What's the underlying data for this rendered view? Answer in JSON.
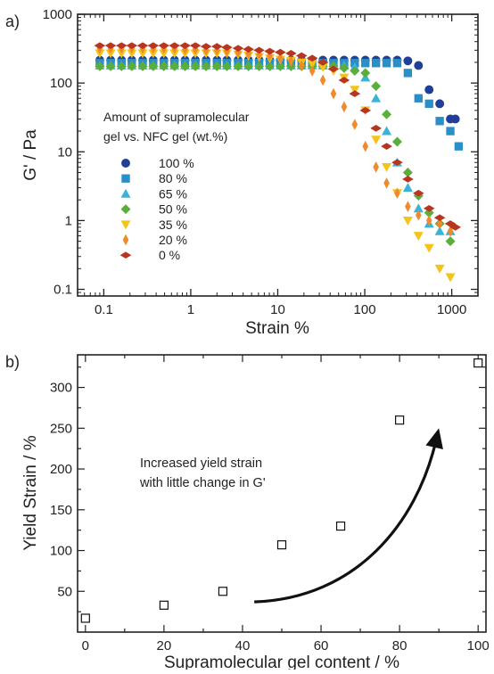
{
  "chart_data": [
    {
      "panel_label": "a)",
      "type": "scatter",
      "xlabel": "Strain %",
      "ylabel": "G' / Pa",
      "xscale": "log",
      "yscale": "log",
      "xlim": [
        0.05,
        2000
      ],
      "ylim": [
        0.08,
        1000
      ],
      "x_ticks": [
        0.1,
        1,
        10,
        100,
        1000
      ],
      "x_tick_labels": [
        "0.1",
        "1",
        "10",
        "100",
        "1000"
      ],
      "y_ticks": [
        0.1,
        1,
        10,
        100,
        1000
      ],
      "y_tick_labels": [
        "0.1",
        "1",
        "10",
        "100",
        "1000"
      ],
      "grid": false,
      "legend_title": [
        "Amount of supramolecular",
        "gel vs. NFC gel (wt.%)"
      ],
      "legend_position": "center-left",
      "series": [
        {
          "name": "100 %",
          "marker": "circle",
          "color": "#1f3f99",
          "x": [
            0.09,
            0.12,
            0.16,
            0.21,
            0.28,
            0.37,
            0.49,
            0.65,
            0.86,
            1.13,
            1.5,
            2,
            2.6,
            3.5,
            4.6,
            6.1,
            8.1,
            10.7,
            14.2,
            18.8,
            24.9,
            33,
            43.7,
            57.9,
            76.7,
            101.6,
            134.6,
            178.3,
            236,
            312.8,
            414.4,
            549,
            727.3,
            963.6,
            1100
          ],
          "y": [
            215,
            215,
            215,
            215,
            215,
            215,
            215,
            215,
            215,
            215,
            215,
            215,
            215,
            215,
            215,
            215,
            215,
            215,
            215,
            215,
            215,
            215,
            215,
            215,
            215,
            215,
            215,
            215,
            215,
            210,
            180,
            80,
            50,
            30,
            30
          ]
        },
        {
          "name": "80 %",
          "marker": "square",
          "color": "#2b8fc7",
          "x": [
            0.09,
            0.12,
            0.16,
            0.21,
            0.28,
            0.37,
            0.49,
            0.65,
            0.86,
            1.13,
            1.5,
            2,
            2.6,
            3.5,
            4.6,
            6.1,
            8.1,
            10.7,
            14.2,
            18.8,
            24.9,
            33,
            43.7,
            57.9,
            76.7,
            101.6,
            134.6,
            178.3,
            236,
            312.8,
            414.4,
            549,
            727.3,
            963.6,
            1200
          ],
          "y": [
            195,
            195,
            195,
            195,
            195,
            195,
            195,
            195,
            195,
            195,
            195,
            195,
            195,
            195,
            195,
            195,
            195,
            195,
            195,
            195,
            195,
            195,
            195,
            195,
            195,
            195,
            195,
            195,
            195,
            140,
            60,
            50,
            28,
            20,
            12
          ]
        },
        {
          "name": "65 %",
          "marker": "triangle-up",
          "color": "#39b4d8",
          "x": [
            0.09,
            0.12,
            0.16,
            0.21,
            0.28,
            0.37,
            0.49,
            0.65,
            0.86,
            1.13,
            1.5,
            2,
            2.6,
            3.5,
            4.6,
            6.1,
            8.1,
            10.7,
            14.2,
            18.8,
            24.9,
            33,
            43.7,
            57.9,
            76.7,
            101.6,
            134.6,
            178.3,
            236,
            312.8,
            414.4,
            549,
            727.3,
            963.6
          ],
          "y": [
            180,
            180,
            180,
            180,
            180,
            180,
            180,
            180,
            180,
            180,
            180,
            180,
            180,
            180,
            180,
            180,
            180,
            180,
            180,
            180,
            180,
            180,
            180,
            180,
            170,
            120,
            60,
            20,
            7,
            3,
            1.5,
            0.9,
            0.7,
            0.7
          ]
        },
        {
          "name": "50 %",
          "marker": "diamond",
          "color": "#5cae3c",
          "x": [
            0.09,
            0.12,
            0.16,
            0.21,
            0.28,
            0.37,
            0.49,
            0.65,
            0.86,
            1.13,
            1.5,
            2,
            2.6,
            3.5,
            4.6,
            6.1,
            8.1,
            10.7,
            14.2,
            18.8,
            24.9,
            33,
            43.7,
            57.9,
            76.7,
            101.6,
            134.6,
            178.3,
            236,
            312.8,
            414.4,
            549,
            727.3,
            963.6
          ],
          "y": [
            175,
            175,
            175,
            175,
            175,
            175,
            175,
            175,
            175,
            175,
            175,
            175,
            175,
            175,
            175,
            175,
            175,
            175,
            175,
            175,
            175,
            175,
            175,
            165,
            150,
            140,
            90,
            35,
            14,
            5,
            2.3,
            1.3,
            0.9,
            0.5
          ]
        },
        {
          "name": "35 %",
          "marker": "triangle-down",
          "color": "#f5c419",
          "x": [
            0.09,
            0.12,
            0.16,
            0.21,
            0.28,
            0.37,
            0.49,
            0.65,
            0.86,
            1.13,
            1.5,
            2,
            2.6,
            3.5,
            4.6,
            6.1,
            8.1,
            10.7,
            14.2,
            18.8,
            24.9,
            33,
            43.7,
            57.9,
            76.7,
            101.6,
            134.6,
            178.3,
            236,
            312.8,
            414.4,
            549,
            727.3,
            963.6
          ],
          "y": [
            270,
            270,
            270,
            270,
            270,
            270,
            270,
            270,
            270,
            270,
            270,
            270,
            270,
            260,
            250,
            240,
            230,
            220,
            210,
            200,
            190,
            170,
            150,
            120,
            80,
            40,
            15,
            6,
            2.5,
            1,
            0.6,
            0.4,
            0.2,
            0.15
          ]
        },
        {
          "name": "20 %",
          "marker": "thin-diamond",
          "color": "#f08a2a",
          "x": [
            0.09,
            0.12,
            0.16,
            0.21,
            0.28,
            0.37,
            0.49,
            0.65,
            0.86,
            1.13,
            1.5,
            2,
            2.6,
            3.5,
            4.6,
            6.1,
            8.1,
            10.7,
            14.2,
            18.8,
            24.9,
            33,
            43.7,
            57.9,
            76.7,
            101.6,
            134.6,
            178.3,
            236,
            312.8,
            414.4,
            549,
            727.3,
            963.6
          ],
          "y": [
            320,
            320,
            320,
            320,
            320,
            320,
            320,
            320,
            310,
            310,
            300,
            300,
            290,
            280,
            270,
            260,
            250,
            230,
            210,
            180,
            150,
            110,
            70,
            45,
            25,
            12,
            6,
            3.5,
            2.5,
            1.6,
            1.2,
            1,
            0.9,
            0.7
          ]
        },
        {
          "name": "0 %",
          "marker": "wide-diamond",
          "color": "#b8361f",
          "x": [
            0.09,
            0.12,
            0.16,
            0.21,
            0.28,
            0.37,
            0.49,
            0.65,
            0.86,
            1.13,
            1.5,
            2,
            2.6,
            3.5,
            4.6,
            6.1,
            8.1,
            10.7,
            14.2,
            18.8,
            24.9,
            33,
            43.7,
            57.9,
            76.7,
            101.6,
            134.6,
            178.3,
            236,
            312.8,
            414.4,
            549,
            727.3,
            963.6,
            1100
          ],
          "y": [
            350,
            350,
            350,
            350,
            350,
            350,
            350,
            350,
            350,
            350,
            340,
            340,
            330,
            320,
            310,
            300,
            290,
            280,
            270,
            250,
            230,
            200,
            160,
            110,
            70,
            40,
            22,
            12,
            7,
            4,
            2.5,
            1.5,
            1.1,
            0.9,
            0.8
          ]
        }
      ]
    },
    {
      "panel_label": "b)",
      "type": "scatter",
      "xlabel": "Supramolecular gel content / %",
      "ylabel": "Yield Strain / %",
      "xlim": [
        -2,
        102
      ],
      "ylim": [
        0,
        340
      ],
      "x_ticks": [
        0,
        20,
        40,
        60,
        80,
        100
      ],
      "x_tick_labels": [
        "0",
        "20",
        "40",
        "60",
        "80",
        "100"
      ],
      "y_ticks": [
        50,
        100,
        150,
        200,
        250,
        300
      ],
      "y_tick_labels": [
        "50",
        "100",
        "150",
        "200",
        "250",
        "300"
      ],
      "grid": false,
      "series": [
        {
          "marker": "open-square",
          "color": "#111111",
          "x": [
            0,
            20,
            35,
            50,
            65,
            80,
            100
          ],
          "y": [
            17,
            33,
            50,
            107,
            130,
            260,
            330
          ]
        }
      ],
      "annotation": {
        "lines": [
          "Increased yield strain",
          "with little change in G'"
        ]
      },
      "arrow": {
        "from": [
          43,
          37
        ],
        "to": [
          90,
          250
        ]
      }
    }
  ]
}
